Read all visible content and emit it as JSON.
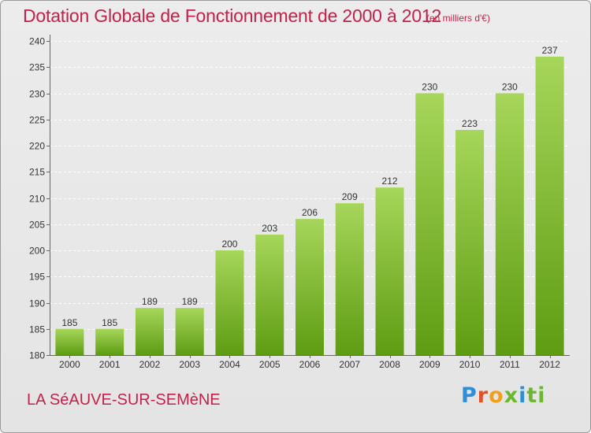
{
  "header": {
    "title": "Dotation Globale de Fonctionnement de 2000 à 2012",
    "unit": "(en milliers d'€)"
  },
  "footer": {
    "commune": "LA SéAUVE-SUR-SEMèNE",
    "logo_text": "Proxiti",
    "logo_colors": [
      "#2e8fd6",
      "#e0522a",
      "#f0a020",
      "#6ab82e",
      "#2e8fd6",
      "#6ab82e"
    ]
  },
  "colors": {
    "bar_top": "#a6d65a",
    "bar_bottom": "#5e9c12",
    "title": "#c0224a",
    "grid": "#ffffff"
  },
  "chart_data": {
    "type": "bar",
    "title": "Dotation Globale de Fonctionnement de 2000 à 2012",
    "subtitle": "(en milliers d'€)",
    "xlabel": "",
    "ylabel": "",
    "categories": [
      "2000",
      "2001",
      "2002",
      "2003",
      "2004",
      "2005",
      "2006",
      "2007",
      "2008",
      "2009",
      "2010",
      "2011",
      "2012"
    ],
    "values": [
      185,
      185,
      189,
      189,
      200,
      203,
      206,
      209,
      212,
      230,
      223,
      230,
      237
    ],
    "ylim": [
      180,
      240
    ],
    "yticks": [
      180,
      185,
      190,
      195,
      200,
      205,
      210,
      215,
      220,
      225,
      230,
      235,
      240
    ],
    "grid": "horizontal-dashed",
    "data_labels": true
  }
}
